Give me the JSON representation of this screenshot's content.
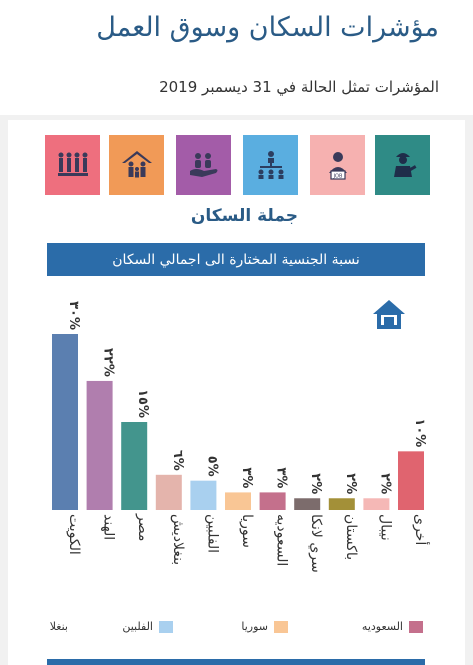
{
  "header": {
    "title": "مؤشرات السكان وسوق العمل",
    "subtitle": "المؤشرات تمثل الحالة في 31 ديسمبر 2019"
  },
  "tiles": [
    {
      "name": "population-crowd-icon",
      "color": "#ee6f7e"
    },
    {
      "name": "family-house-icon",
      "color": "#f19a57"
    },
    {
      "name": "hand-people-icon",
      "color": "#a35ca8"
    },
    {
      "name": "org-chart-icon",
      "color": "#5aaee0"
    },
    {
      "name": "job-seeker-icon",
      "color": "#f6b1b0"
    },
    {
      "name": "worker-icon",
      "color": "#2f8b86"
    }
  ],
  "section_title": "جملة السكان",
  "banner": "نسبة الجنسية المختارة الى اجمالي السكان",
  "chart_data": {
    "type": "bar",
    "categories": [
      "الكويت",
      "الهند",
      "مصر",
      "بنغلاديش",
      "الفلبين",
      "سوريا",
      "السعوديه",
      "سري لانكا",
      "باكستان",
      "نيبال",
      "أخرى"
    ],
    "values": [
      30,
      22,
      15,
      6,
      5,
      3,
      3,
      2,
      2,
      2,
      10
    ],
    "value_labels": [
      "٣٠%",
      "٢٢%",
      "١٥%",
      "٦%",
      "٥%",
      "٣%",
      "٣%",
      "٢%",
      "٢%",
      "٢%",
      "١٠%"
    ],
    "colors": [
      "#5b7fb0",
      "#b07eae",
      "#43958d",
      "#e4b4ac",
      "#a9d0ef",
      "#f9c695",
      "#c4708c",
      "#7c6c6c",
      "#a39038",
      "#f5b8b6",
      "#e0646f"
    ],
    "ylim": [
      0,
      30
    ],
    "orientation": "rtl-text"
  },
  "legend": [
    {
      "label": "السعوديه",
      "color": "#c4708c"
    },
    {
      "label": "سوريا",
      "color": "#f9c695"
    },
    {
      "label": "الفلبين",
      "color": "#a9d0ef"
    },
    {
      "label": "بنغلا",
      "color": "#e4b4ac"
    }
  ]
}
